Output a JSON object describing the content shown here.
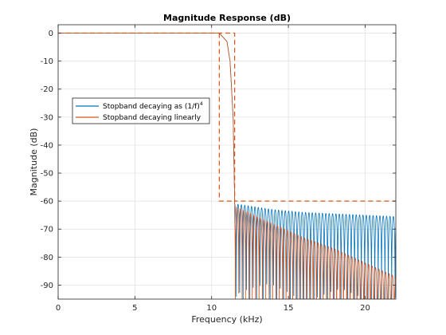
{
  "chart_data": {
    "type": "line",
    "title": "Magnitude Response (dB)",
    "xlabel": "Frequency (kHz)",
    "ylabel": "Magnitude (dB)",
    "xlim": [
      0,
      22
    ],
    "ylim": [
      -95,
      3
    ],
    "xticks": [
      0,
      5,
      10,
      15,
      20
    ],
    "xtick_labels": [
      "0",
      "5",
      "10",
      "15",
      "20"
    ],
    "yticks": [
      0,
      -10,
      -20,
      -30,
      -40,
      -50,
      -60,
      -70,
      -80,
      -90
    ],
    "ytick_labels": [
      "0",
      "-10",
      "-20",
      "-30",
      "-40",
      "-50",
      "-60",
      "-70",
      "-80",
      "-90"
    ],
    "grid": true,
    "legend_position": "upper-left",
    "colors": {
      "series1": "#0072BD",
      "series2": "#D95319",
      "axis": "#262626",
      "grid": "#dfdfdf"
    },
    "series": [
      {
        "name": "Stopband decaying as (1/f)",
        "name_superscript": "4",
        "passband": [
          [
            0,
            0
          ],
          [
            10.5,
            0
          ],
          [
            11,
            -3
          ],
          [
            11.2,
            -10
          ],
          [
            11.4,
            -30
          ],
          [
            11.5,
            -60
          ]
        ],
        "stopband_peak_envelope": [
          [
            11.6,
            -61
          ],
          [
            14,
            -63
          ],
          [
            16,
            -64
          ],
          [
            18,
            -64.5
          ],
          [
            20,
            -65
          ],
          [
            22,
            -65.5
          ]
        ],
        "stopband_start_khz": 11.5,
        "stopband_end_khz": 22,
        "ripple_spacing_khz": 0.22
      },
      {
        "name": "Stopband decaying linearly",
        "passband": [
          [
            0,
            0
          ],
          [
            10.5,
            0
          ],
          [
            11,
            -3
          ],
          [
            11.2,
            -10
          ],
          [
            11.4,
            -30
          ],
          [
            11.5,
            -60
          ]
        ],
        "stopband_peak_envelope": [
          [
            11.6,
            -62
          ],
          [
            14,
            -68
          ],
          [
            16,
            -73
          ],
          [
            18,
            -77
          ],
          [
            20,
            -82
          ],
          [
            22,
            -87
          ]
        ],
        "stopband_start_khz": 11.5,
        "stopband_end_khz": 22,
        "ripple_spacing_khz": 0.22
      }
    ],
    "spec_mask": {
      "upper": [
        [
          0,
          0
        ],
        [
          11.5,
          0
        ],
        [
          11.5,
          -60
        ],
        [
          22,
          -60
        ]
      ],
      "lower": [
        [
          10.5,
          0
        ],
        [
          10.5,
          -60
        ],
        [
          11.5,
          -60
        ]
      ]
    }
  }
}
